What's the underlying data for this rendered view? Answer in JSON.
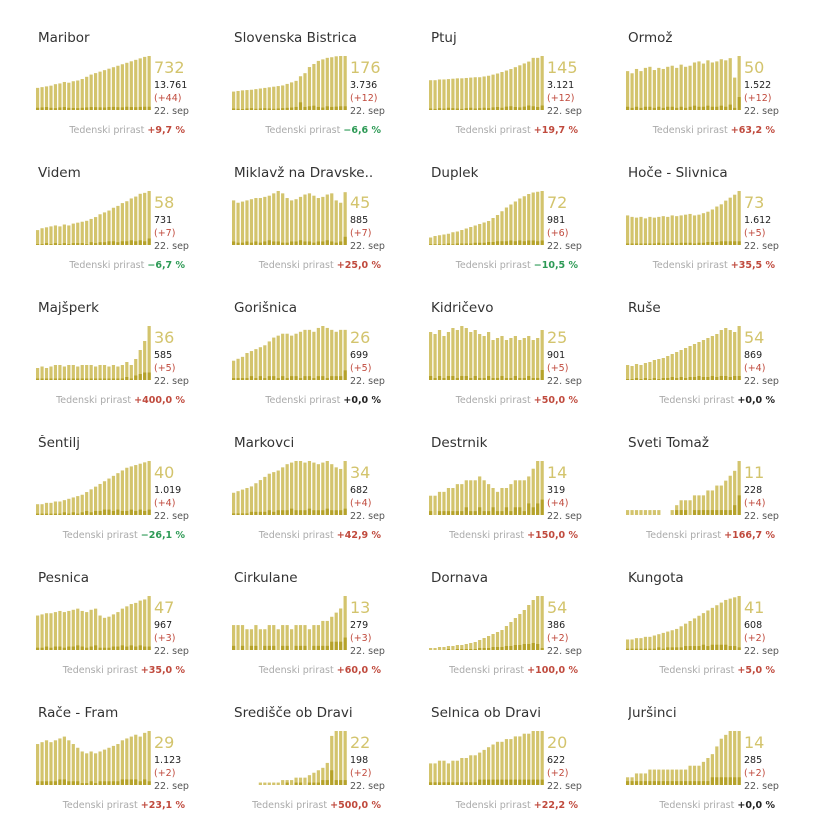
{
  "growth_label": "Tedenski prirast",
  "date_label": "22. sep",
  "colors": {
    "bar_active": "#d3c46d",
    "bar_new": "#b5a22a",
    "growth_up": "#c04a3d",
    "growth_down": "#2d9a55",
    "growth_zero": "#222222"
  },
  "chart_data": [
    {
      "type": "bar",
      "name": "Maribor",
      "active": "732",
      "total": "13.761",
      "delta": "(+44)",
      "growth": "+9,7 %",
      "dir": "up",
      "values": [
        300,
        310,
        320,
        330,
        350,
        360,
        380,
        370,
        390,
        400,
        420,
        450,
        480,
        500,
        520,
        540,
        560,
        580,
        600,
        620,
        640,
        660,
        680,
        700,
        720,
        732
      ],
      "new": [
        30,
        35,
        40,
        30,
        25,
        35,
        40,
        30,
        28,
        25,
        30,
        35,
        40,
        38,
        36,
        34,
        40,
        42,
        38,
        36,
        44,
        40,
        38,
        42,
        44,
        44
      ]
    },
    {
      "type": "bar",
      "name": "Slovenska Bistrica",
      "active": "176",
      "total": "3.736",
      "delta": "(+12)",
      "growth": "−6,6 %",
      "dir": "down",
      "values": [
        60,
        62,
        64,
        65,
        66,
        68,
        70,
        72,
        74,
        76,
        78,
        80,
        85,
        90,
        95,
        110,
        120,
        140,
        150,
        160,
        165,
        170,
        172,
        175,
        176,
        176
      ],
      "new": [
        5,
        4,
        3,
        5,
        6,
        4,
        5,
        6,
        5,
        4,
        5,
        6,
        7,
        8,
        10,
        25,
        10,
        12,
        14,
        10,
        8,
        12,
        10,
        11,
        12,
        12
      ]
    },
    {
      "type": "bar",
      "name": "Ptuj",
      "active": "145",
      "total": "3.121",
      "delta": "(+12)",
      "growth": "+19,7 %",
      "dir": "up",
      "values": [
        80,
        80,
        82,
        82,
        83,
        84,
        85,
        85,
        86,
        87,
        88,
        88,
        90,
        92,
        95,
        98,
        102,
        106,
        110,
        115,
        120,
        125,
        130,
        140,
        140,
        145
      ],
      "new": [
        4,
        3,
        5,
        4,
        6,
        5,
        4,
        3,
        5,
        6,
        4,
        5,
        6,
        5,
        7,
        8,
        6,
        9,
        10,
        8,
        7,
        9,
        12,
        10,
        8,
        12
      ]
    },
    {
      "type": "bar",
      "name": "Ormož",
      "active": "50",
      "total": "1.522",
      "delta": "(+12)",
      "growth": "+63,2 %",
      "dir": "up",
      "values": [
        36,
        34,
        38,
        36,
        39,
        40,
        37,
        39,
        38,
        40,
        41,
        39,
        42,
        40,
        41,
        44,
        45,
        43,
        46,
        44,
        45,
        47,
        46,
        48,
        30,
        50
      ],
      "new": [
        3,
        2,
        3,
        2,
        3,
        3,
        2,
        3,
        2,
        3,
        3,
        2,
        3,
        2,
        3,
        4,
        3,
        3,
        4,
        3,
        3,
        4,
        3,
        5,
        2,
        12
      ]
    },
    {
      "type": "bar",
      "name": "Videm",
      "active": "58",
      "total": "731",
      "delta": "(+7)",
      "growth": "−6,7 %",
      "dir": "down",
      "values": [
        16,
        18,
        19,
        20,
        21,
        20,
        22,
        21,
        23,
        24,
        25,
        26,
        28,
        30,
        33,
        35,
        37,
        40,
        42,
        45,
        47,
        50,
        52,
        55,
        56,
        58
      ],
      "new": [
        1,
        1,
        2,
        1,
        2,
        1,
        2,
        1,
        2,
        2,
        2,
        1,
        3,
        2,
        3,
        3,
        4,
        4,
        3,
        4,
        4,
        5,
        4,
        5,
        4,
        7
      ]
    },
    {
      "type": "bar",
      "name": "Miklavž na Dravske...",
      "active": "45",
      "total": "885",
      "delta": "(+7)",
      "growth": "+25,0 %",
      "dir": "up",
      "values": [
        38,
        36,
        37,
        38,
        39,
        40,
        40,
        41,
        42,
        44,
        46,
        44,
        40,
        38,
        39,
        41,
        43,
        44,
        42,
        40,
        41,
        43,
        44,
        38,
        36,
        45
      ],
      "new": [
        3,
        2,
        2,
        3,
        2,
        3,
        2,
        3,
        4,
        3,
        3,
        2,
        2,
        3,
        3,
        4,
        3,
        3,
        2,
        3,
        3,
        4,
        3,
        2,
        3,
        7
      ]
    },
    {
      "type": "bar",
      "name": "Duplek",
      "active": "72",
      "total": "981",
      "delta": "(+6)",
      "growth": "−10,5 %",
      "dir": "down",
      "values": [
        10,
        12,
        13,
        14,
        15,
        17,
        18,
        20,
        22,
        24,
        26,
        28,
        30,
        32,
        36,
        40,
        45,
        50,
        54,
        58,
        62,
        65,
        68,
        70,
        71,
        72
      ],
      "new": [
        1,
        1,
        1,
        1,
        2,
        1,
        2,
        2,
        2,
        2,
        3,
        3,
        3,
        4,
        4,
        5,
        5,
        5,
        6,
        5,
        6,
        5,
        6,
        6,
        5,
        6
      ]
    },
    {
      "type": "bar",
      "name": "Hoče - Slivnica",
      "active": "73",
      "total": "1.612",
      "delta": "(+5)",
      "growth": "+35,5 %",
      "dir": "up",
      "values": [
        40,
        38,
        37,
        38,
        36,
        38,
        37,
        38,
        39,
        38,
        40,
        39,
        40,
        41,
        42,
        40,
        41,
        43,
        45,
        48,
        52,
        55,
        60,
        64,
        68,
        73
      ],
      "new": [
        2,
        2,
        2,
        2,
        2,
        2,
        2,
        3,
        2,
        2,
        3,
        2,
        3,
        3,
        3,
        2,
        3,
        3,
        4,
        4,
        4,
        5,
        5,
        5,
        5,
        5
      ]
    },
    {
      "type": "bar",
      "name": "Majšperk",
      "active": "36",
      "total": "585",
      "delta": "(+5)",
      "growth": "+400,0 %",
      "dir": "up",
      "values": [
        8,
        9,
        8,
        9,
        10,
        10,
        9,
        10,
        10,
        9,
        10,
        10,
        10,
        9,
        10,
        10,
        9,
        10,
        9,
        10,
        12,
        10,
        14,
        20,
        26,
        36
      ],
      "new": [
        1,
        1,
        1,
        1,
        1,
        1,
        1,
        1,
        1,
        1,
        1,
        1,
        1,
        1,
        1,
        1,
        1,
        1,
        1,
        1,
        2,
        1,
        3,
        4,
        5,
        5
      ]
    },
    {
      "type": "bar",
      "name": "Gorišnica",
      "active": "26",
      "total": "699",
      "delta": "(+5)",
      "growth": "+0,0 %",
      "dir": "zero",
      "values": [
        10,
        11,
        12,
        14,
        15,
        16,
        17,
        18,
        20,
        22,
        23,
        24,
        24,
        23,
        24,
        25,
        26,
        26,
        25,
        27,
        28,
        27,
        26,
        25,
        26,
        26
      ],
      "new": [
        1,
        1,
        1,
        1,
        2,
        1,
        2,
        1,
        2,
        2,
        1,
        2,
        1,
        2,
        2,
        1,
        2,
        2,
        1,
        2,
        2,
        1,
        2,
        2,
        2,
        5
      ]
    },
    {
      "type": "bar",
      "name": "Kidričevo",
      "active": "25",
      "total": "901",
      "delta": "(+5)",
      "growth": "+50,0 %",
      "dir": "up",
      "values": [
        24,
        23,
        25,
        22,
        24,
        26,
        25,
        27,
        26,
        24,
        25,
        23,
        22,
        24,
        20,
        21,
        22,
        20,
        21,
        22,
        20,
        21,
        22,
        20,
        21,
        25
      ],
      "new": [
        2,
        1,
        2,
        1,
        2,
        2,
        1,
        2,
        2,
        1,
        2,
        1,
        1,
        2,
        1,
        1,
        2,
        1,
        1,
        2,
        1,
        1,
        2,
        1,
        1,
        5
      ]
    },
    {
      "type": "bar",
      "name": "Ruše",
      "active": "54",
      "total": "869",
      "delta": "(+4)",
      "growth": "+0,0 %",
      "dir": "zero",
      "values": [
        15,
        14,
        16,
        15,
        17,
        18,
        20,
        21,
        22,
        24,
        26,
        28,
        30,
        32,
        34,
        36,
        38,
        40,
        42,
        44,
        46,
        50,
        52,
        50,
        48,
        54
      ],
      "new": [
        1,
        1,
        2,
        1,
        2,
        1,
        2,
        1,
        2,
        2,
        3,
        2,
        3,
        2,
        3,
        3,
        4,
        3,
        3,
        4,
        3,
        4,
        4,
        3,
        4,
        4
      ]
    },
    {
      "type": "bar",
      "name": "Šentilj",
      "active": "40",
      "total": "1.019",
      "delta": "(+4)",
      "growth": "−26,1 %",
      "dir": "down",
      "values": [
        8,
        8,
        9,
        9,
        10,
        10,
        11,
        12,
        13,
        14,
        15,
        17,
        19,
        21,
        23,
        25,
        27,
        29,
        31,
        33,
        35,
        36,
        37,
        38,
        39,
        40
      ],
      "new": [
        1,
        1,
        1,
        1,
        1,
        1,
        2,
        1,
        2,
        1,
        2,
        3,
        2,
        3,
        3,
        4,
        4,
        3,
        4,
        3,
        3,
        4,
        3,
        4,
        3,
        4
      ]
    },
    {
      "type": "bar",
      "name": "Markovci",
      "active": "34",
      "total": "682",
      "delta": "(+4)",
      "growth": "+42,9 %",
      "dir": "up",
      "values": [
        14,
        15,
        16,
        17,
        18,
        20,
        22,
        24,
        26,
        27,
        28,
        30,
        32,
        33,
        34,
        34,
        33,
        34,
        33,
        32,
        33,
        34,
        32,
        30,
        29,
        34
      ],
      "new": [
        1,
        1,
        1,
        1,
        2,
        2,
        2,
        2,
        3,
        2,
        3,
        3,
        3,
        4,
        3,
        3,
        3,
        4,
        3,
        3,
        3,
        4,
        3,
        3,
        3,
        4
      ]
    },
    {
      "type": "bar",
      "name": "Destrnik",
      "active": "14",
      "total": "319",
      "delta": "(+4)",
      "growth": "+150,0 %",
      "dir": "up",
      "values": [
        5,
        5,
        6,
        6,
        7,
        7,
        8,
        8,
        9,
        9,
        9,
        10,
        9,
        8,
        7,
        6,
        7,
        7,
        8,
        9,
        9,
        9,
        10,
        12,
        14,
        14
      ],
      "new": [
        1,
        0,
        1,
        1,
        1,
        1,
        1,
        1,
        2,
        1,
        1,
        2,
        1,
        1,
        2,
        1,
        1,
        2,
        1,
        2,
        2,
        1,
        3,
        2,
        3,
        4
      ]
    },
    {
      "type": "bar",
      "name": "Sveti Tomaž",
      "active": "11",
      "total": "228",
      "delta": "(+4)",
      "growth": "+166,7 %",
      "dir": "up",
      "values": [
        1,
        1,
        1,
        1,
        1,
        1,
        1,
        1,
        0,
        0,
        1,
        2,
        3,
        3,
        3,
        4,
        4,
        4,
        5,
        5,
        6,
        6,
        7,
        8,
        9,
        11
      ],
      "new": [
        0,
        0,
        0,
        0,
        0,
        0,
        0,
        0,
        0,
        0,
        0,
        1,
        1,
        1,
        0,
        1,
        1,
        1,
        1,
        1,
        1,
        1,
        1,
        1,
        2,
        4
      ]
    },
    {
      "type": "bar",
      "name": "Pesnica",
      "active": "47",
      "total": "967",
      "delta": "(+3)",
      "growth": "+35,0 %",
      "dir": "up",
      "values": [
        30,
        31,
        32,
        32,
        33,
        34,
        33,
        34,
        35,
        36,
        34,
        33,
        35,
        36,
        30,
        28,
        29,
        31,
        33,
        36,
        38,
        40,
        41,
        43,
        44,
        47
      ],
      "new": [
        2,
        2,
        3,
        2,
        3,
        3,
        2,
        3,
        3,
        4,
        3,
        2,
        3,
        4,
        2,
        2,
        2,
        3,
        3,
        4,
        3,
        4,
        3,
        4,
        3,
        3
      ]
    },
    {
      "type": "bar",
      "name": "Cirkulane",
      "active": "13",
      "total": "279",
      "delta": "(+3)",
      "growth": "+60,0 %",
      "dir": "up",
      "values": [
        6,
        6,
        6,
        5,
        5,
        6,
        5,
        5,
        6,
        6,
        5,
        6,
        6,
        5,
        6,
        6,
        6,
        5,
        6,
        6,
        7,
        7,
        8,
        9,
        10,
        13
      ],
      "new": [
        1,
        0,
        1,
        0,
        1,
        1,
        0,
        1,
        1,
        1,
        0,
        1,
        1,
        0,
        1,
        1,
        1,
        0,
        1,
        1,
        1,
        1,
        2,
        2,
        2,
        3
      ]
    },
    {
      "type": "bar",
      "name": "Dornava",
      "active": "54",
      "total": "386",
      "delta": "(+2)",
      "growth": "+100,0 %",
      "dir": "up",
      "values": [
        2,
        2,
        3,
        3,
        4,
        4,
        5,
        5,
        6,
        7,
        8,
        10,
        12,
        14,
        16,
        18,
        20,
        24,
        28,
        32,
        36,
        40,
        45,
        50,
        54,
        54
      ],
      "new": [
        0,
        0,
        0,
        0,
        1,
        0,
        1,
        1,
        1,
        1,
        1,
        2,
        2,
        2,
        3,
        3,
        3,
        4,
        4,
        5,
        5,
        6,
        6,
        7,
        6,
        2
      ]
    },
    {
      "type": "bar",
      "name": "Kungota",
      "active": "41",
      "total": "608",
      "delta": "(+2)",
      "growth": "+5,0 %",
      "dir": "up",
      "values": [
        8,
        8,
        9,
        9,
        10,
        10,
        11,
        12,
        13,
        14,
        15,
        16,
        18,
        20,
        22,
        24,
        26,
        28,
        30,
        32,
        34,
        36,
        38,
        39,
        40,
        41
      ],
      "new": [
        1,
        1,
        1,
        1,
        1,
        1,
        1,
        2,
        1,
        2,
        2,
        2,
        2,
        3,
        3,
        3,
        3,
        4,
        3,
        4,
        4,
        4,
        4,
        3,
        3,
        2
      ]
    },
    {
      "type": "bar",
      "name": "Rače - Fram",
      "active": "29",
      "total": "1.123",
      "delta": "(+2)",
      "growth": "+23,1 %",
      "dir": "up",
      "values": [
        22,
        23,
        24,
        23,
        24,
        25,
        26,
        24,
        22,
        20,
        18,
        17,
        18,
        17,
        18,
        19,
        20,
        21,
        22,
        24,
        25,
        26,
        27,
        26,
        28,
        29
      ],
      "new": [
        2,
        2,
        2,
        2,
        2,
        3,
        3,
        2,
        2,
        2,
        1,
        1,
        2,
        1,
        2,
        2,
        2,
        2,
        2,
        3,
        3,
        3,
        3,
        2,
        3,
        2
      ]
    },
    {
      "type": "bar",
      "name": "Središče ob Dravi",
      "active": "22",
      "total": "198",
      "delta": "(+2)",
      "growth": "+500,0 %",
      "dir": "up",
      "values": [
        0,
        0,
        0,
        0,
        0,
        0,
        1,
        1,
        1,
        1,
        1,
        2,
        2,
        2,
        3,
        3,
        3,
        4,
        5,
        6,
        7,
        9,
        20,
        22,
        22,
        22
      ],
      "new": [
        0,
        0,
        0,
        0,
        0,
        0,
        0,
        0,
        0,
        0,
        0,
        0,
        1,
        0,
        1,
        1,
        0,
        1,
        1,
        1,
        2,
        2,
        6,
        2,
        2,
        2
      ]
    },
    {
      "type": "bar",
      "name": "Selnica ob Dravi",
      "active": "20",
      "total": "622",
      "delta": "(+2)",
      "growth": "+22,2 %",
      "dir": "up",
      "values": [
        8,
        8,
        9,
        9,
        8,
        9,
        9,
        10,
        10,
        11,
        11,
        12,
        13,
        14,
        15,
        16,
        16,
        17,
        17,
        18,
        18,
        19,
        19,
        20,
        20,
        20
      ],
      "new": [
        1,
        1,
        1,
        1,
        1,
        1,
        1,
        1,
        1,
        1,
        1,
        2,
        2,
        2,
        2,
        2,
        2,
        2,
        2,
        2,
        2,
        2,
        2,
        2,
        2,
        2
      ]
    },
    {
      "type": "bar",
      "name": "Juršinci",
      "active": "14",
      "total": "285",
      "delta": "(+2)",
      "growth": "+0,0 %",
      "dir": "zero",
      "values": [
        2,
        2,
        3,
        3,
        3,
        4,
        4,
        4,
        4,
        4,
        4,
        4,
        4,
        4,
        5,
        5,
        5,
        6,
        7,
        8,
        10,
        12,
        13,
        14,
        14,
        14
      ],
      "new": [
        1,
        1,
        1,
        1,
        1,
        1,
        1,
        1,
        1,
        1,
        1,
        1,
        1,
        1,
        1,
        1,
        1,
        1,
        1,
        2,
        2,
        2,
        2,
        2,
        2,
        2
      ]
    }
  ]
}
